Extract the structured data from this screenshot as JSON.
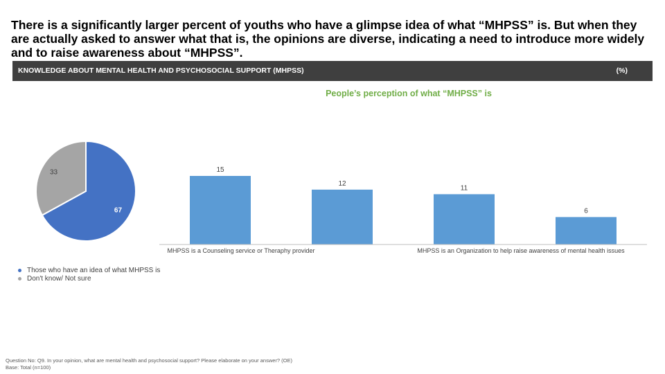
{
  "headline": "There is a significantly larger percent of youths who have a glimpse idea of what “MHPSS” is. But when they are actually asked to answer what that is, the opinions are diverse, indicating a need to introduce more widely and to raise awareness about “MHPSS”.",
  "banner": {
    "title": "KNOWLEDGE ABOUT MENTAL HEALTH AND PSYCHOSOCIAL SUPPORT (MHPSS)",
    "unit": "(%)"
  },
  "chart_data": [
    {
      "type": "pie",
      "title": "",
      "slices": [
        {
          "label": "Those who have an idea of what MHPSS is",
          "value": 67,
          "color": "#4472c4"
        },
        {
          "label": "Don't know/ Not sure",
          "value": 33,
          "color": "#a5a5a5"
        }
      ],
      "legend_position": "bottom-left"
    },
    {
      "type": "bar",
      "title": "People’s perception of what “MHPSS” is",
      "categories": [
        "MHPSS is a Counseling service or Theraphy provider",
        "",
        "MHPSS is an Organization to help raise awareness of mental health issues",
        ""
      ],
      "values": [
        15,
        12,
        11,
        6
      ],
      "color": "#5b9bd5",
      "ylim": [
        0,
        20
      ],
      "grid": false
    }
  ],
  "footnote": {
    "question": "Question No: Q9. In your opinion, what are mental health and psychosocial support? Please elaborate on your answer? (OE)",
    "base": "Base: Total (n=100)"
  }
}
